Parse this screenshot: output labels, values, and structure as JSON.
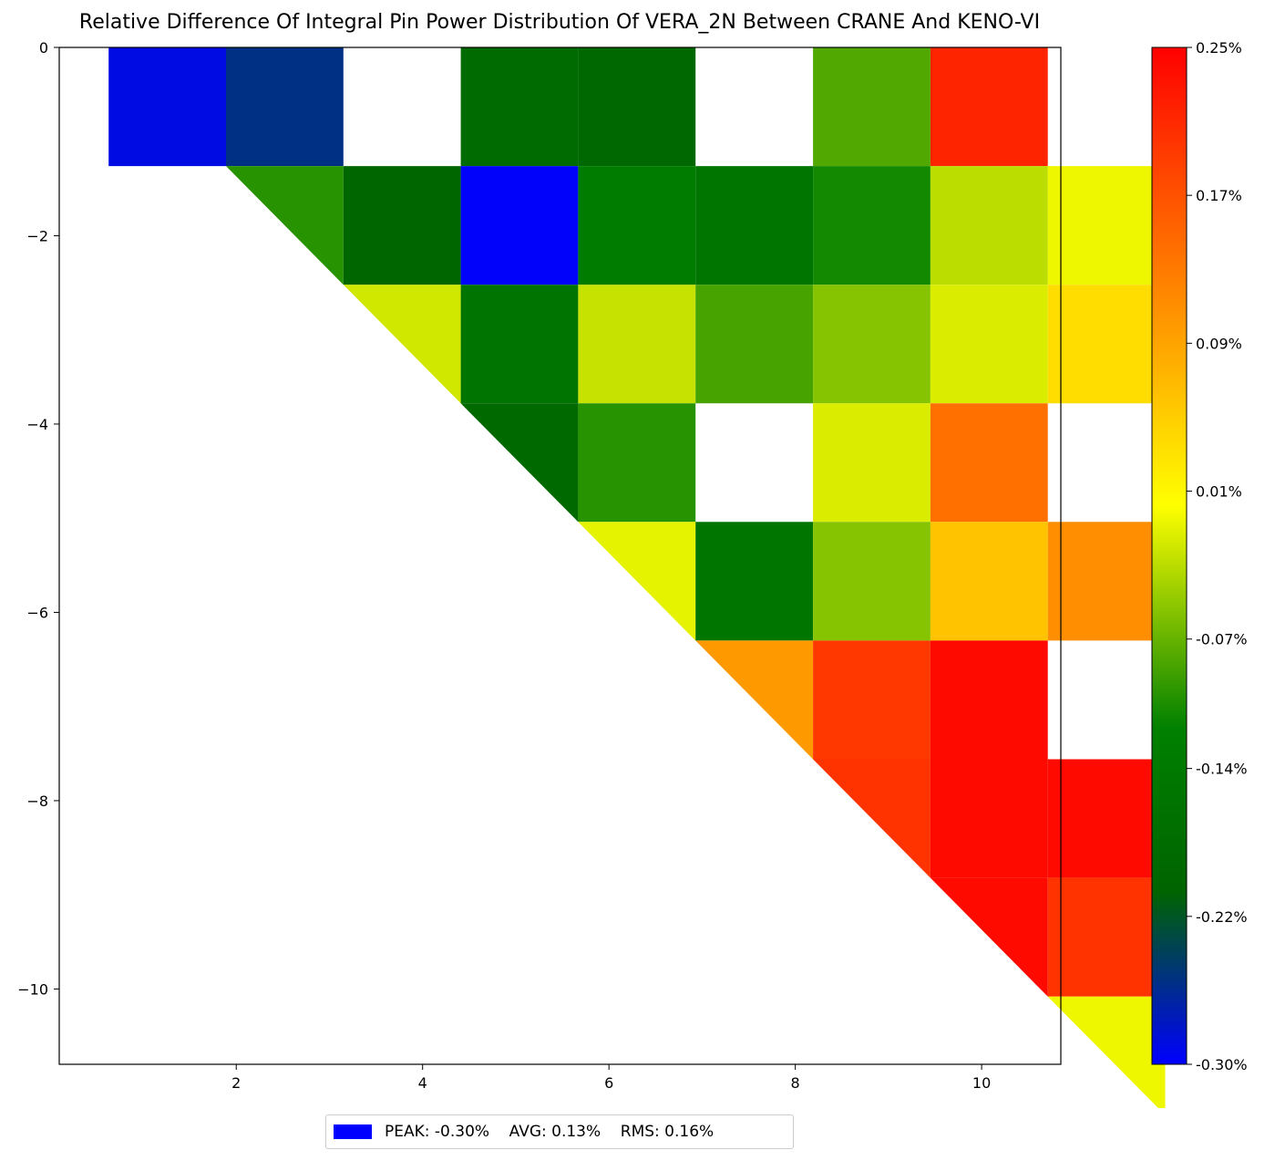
{
  "chart_data": {
    "type": "heatmap",
    "title": "Relative Difference Of Integral Pin Power Distribution Of VERA_2N Between CRANE And KENO-VI",
    "xlabel": "",
    "ylabel": "",
    "xlim": [
      0.1,
      10.85
    ],
    "ylim": [
      -10.8,
      0.0
    ],
    "x_ticks": [
      2,
      4,
      6,
      8,
      10
    ],
    "y_ticks": [
      0,
      -2,
      -4,
      -6,
      -8,
      -10
    ],
    "x_tick_labels": [
      "2",
      "4",
      "6",
      "8",
      "10"
    ],
    "y_tick_labels": [
      "0",
      "−2",
      "−4",
      "−6",
      "−8",
      "−10"
    ],
    "grid": false,
    "rows": 9,
    "cols": 9,
    "pin_pitch": 1.26,
    "values": [
      [
        -0.29,
        -0.255,
        null,
        -0.185,
        -0.195,
        null,
        -0.08,
        0.215,
        null
      ],
      [
        -0.1,
        -0.2,
        -0.298,
        -0.13,
        -0.15,
        -0.11,
        -0.03,
        -0.005,
        null
      ],
      [
        -0.02,
        -0.155,
        -0.025,
        -0.085,
        -0.055,
        -0.015,
        0.035,
        null,
        null
      ],
      [
        -0.19,
        -0.1,
        null,
        -0.015,
        0.14,
        null,
        null,
        null,
        null
      ],
      [
        -0.01,
        -0.15,
        -0.055,
        0.06,
        0.11,
        null,
        null,
        null,
        null
      ],
      [
        0.1,
        0.195,
        0.24,
        null,
        null,
        null,
        null,
        null,
        null
      ],
      [
        0.2,
        0.24,
        0.24,
        null,
        null,
        null,
        null,
        null,
        null
      ],
      [
        0.24,
        0.2,
        null,
        null,
        null,
        null,
        null,
        null,
        null
      ],
      [
        -0.005,
        null,
        null,
        null,
        null,
        null,
        null,
        null,
        null
      ]
    ],
    "colorbar": {
      "min": -0.3,
      "max": 0.25,
      "tick_labels": [
        "0.25%",
        "0.17%",
        "0.09%",
        "0.01%",
        "-0.07%",
        "-0.14%",
        "-0.22%",
        "-0.30%"
      ],
      "tick_values": [
        0.25,
        0.17,
        0.09,
        0.01,
        -0.07,
        -0.14,
        -0.22,
        -0.3
      ],
      "colors": [
        "#0000ff",
        "#006400",
        "#008000",
        "#ffff00",
        "#ff8c00",
        "#ff0000"
      ],
      "color_stops": [
        0.0,
        0.17,
        0.33,
        0.55,
        0.75,
        1.0
      ]
    },
    "legend": {
      "placement": "bottom-center",
      "color": "#0000ff",
      "text": "PEAK: -0.30%    AVG: 0.13%    RMS: 0.16%"
    }
  }
}
